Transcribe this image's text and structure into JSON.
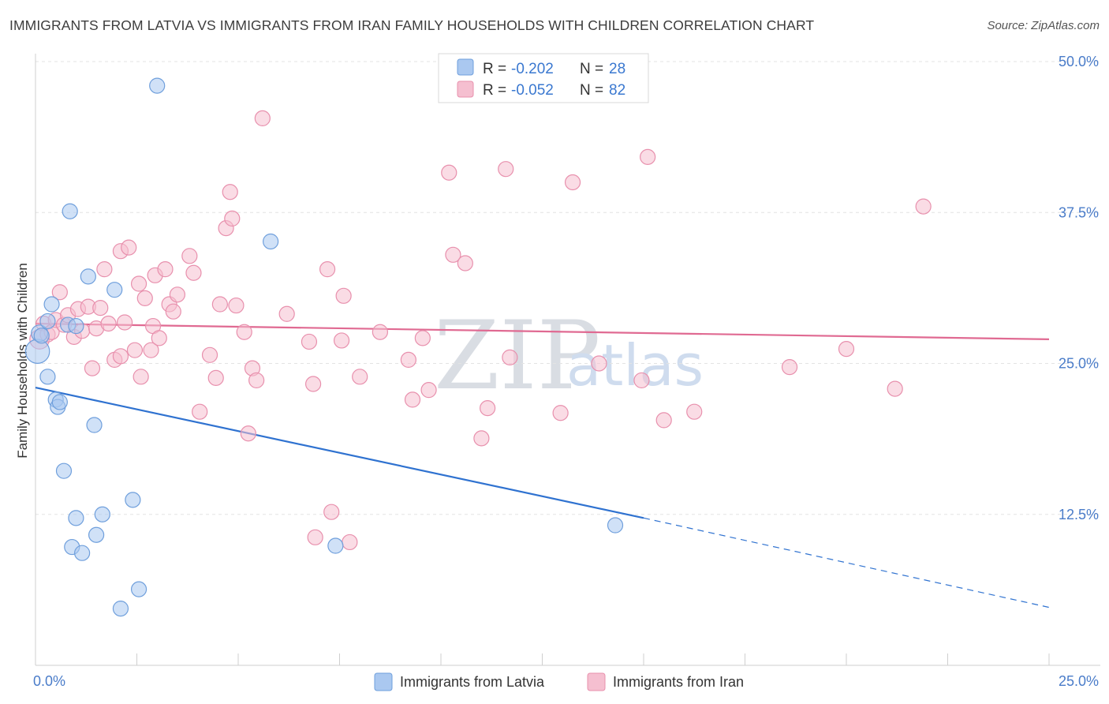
{
  "title": "IMMIGRANTS FROM LATVIA VS IMMIGRANTS FROM IRAN FAMILY HOUSEHOLDS WITH CHILDREN CORRELATION CHART",
  "source": "Source: ZipAtlas.com",
  "watermark": {
    "part1": "ZIP",
    "part2": "atlas"
  },
  "colors": {
    "latvia_fill": "#aac8f0",
    "latvia_stroke": "#6f9fdc",
    "latvia_line": "#2f72d0",
    "iran_fill": "#f5bfd0",
    "iran_stroke": "#e890ad",
    "iran_line": "#e06a92",
    "tick_text": "#4a7cc9",
    "grid": "#e3e3e3"
  },
  "legend": {
    "rows": [
      {
        "r_label": "R = ",
        "r_value": "-0.202",
        "n_label": "N = ",
        "n_value": "28"
      },
      {
        "r_label": "R = ",
        "r_value": "-0.052",
        "n_label": "N = ",
        "n_value": "82"
      }
    ]
  },
  "chart_data": {
    "type": "scatter",
    "title": "IMMIGRANTS FROM LATVIA VS IMMIGRANTS FROM IRAN FAMILY HOUSEHOLDS WITH CHILDREN CORRELATION CHART",
    "xlabel": "",
    "ylabel": "Family Households with Children",
    "xlim": [
      0,
      25
    ],
    "ylim": [
      0,
      50
    ],
    "x_tick_labels": [
      "0.0%",
      "25.0%"
    ],
    "y_ticks": [
      12.5,
      25.0,
      37.5,
      50.0
    ],
    "y_tick_labels": [
      "12.5%",
      "25.0%",
      "37.5%",
      "50.0%"
    ],
    "grid": true,
    "legend_position": "top-center",
    "series": [
      {
        "name": "Immigrants from Latvia",
        "points": [
          [
            0.05,
            26.0,
            1.6
          ],
          [
            0.1,
            27.5,
            1.1
          ],
          [
            0.3,
            28.5,
            1
          ],
          [
            0.15,
            27.3,
            1
          ],
          [
            0.3,
            23.9,
            1
          ],
          [
            0.4,
            29.9,
            1
          ],
          [
            0.5,
            22.0,
            1
          ],
          [
            0.55,
            21.4,
            1
          ],
          [
            0.6,
            21.8,
            1
          ],
          [
            0.7,
            16.1,
            1
          ],
          [
            0.8,
            28.2,
            1
          ],
          [
            0.85,
            37.6,
            1
          ],
          [
            1.0,
            12.2,
            1
          ],
          [
            0.9,
            9.8,
            1
          ],
          [
            1.15,
            9.3,
            1
          ],
          [
            1.0,
            28.1,
            1
          ],
          [
            1.3,
            32.2,
            1
          ],
          [
            1.45,
            19.9,
            1
          ],
          [
            1.5,
            10.8,
            1
          ],
          [
            1.65,
            12.5,
            1
          ],
          [
            1.95,
            31.1,
            1
          ],
          [
            2.1,
            4.7,
            1
          ],
          [
            2.4,
            13.7,
            1
          ],
          [
            2.55,
            6.3,
            1
          ],
          [
            3.0,
            48.0,
            1
          ],
          [
            5.8,
            35.1,
            1
          ],
          [
            7.4,
            9.9,
            1
          ],
          [
            14.3,
            11.6,
            1
          ]
        ],
        "trend": {
          "x0": 0,
          "y0": 23.0,
          "x1": 15.0,
          "y1": 12.2,
          "dashed_to_x": 25.0,
          "dashed_to_y": 4.8
        }
      },
      {
        "name": "Immigrants from Iran",
        "points": [
          [
            0.1,
            27.0,
            1.3
          ],
          [
            0.2,
            28.3,
            1
          ],
          [
            0.3,
            27.4,
            1
          ],
          [
            0.4,
            27.6,
            1
          ],
          [
            0.5,
            28.6,
            1
          ],
          [
            0.6,
            30.9,
            1
          ],
          [
            0.7,
            28.2,
            1
          ],
          [
            0.8,
            29.0,
            1
          ],
          [
            0.95,
            27.2,
            1
          ],
          [
            1.05,
            29.5,
            1
          ],
          [
            1.15,
            27.7,
            1
          ],
          [
            1.3,
            29.7,
            1
          ],
          [
            1.4,
            24.6,
            1
          ],
          [
            1.5,
            27.9,
            1
          ],
          [
            1.6,
            29.6,
            1
          ],
          [
            1.7,
            32.8,
            1
          ],
          [
            1.8,
            28.3,
            1
          ],
          [
            1.95,
            25.3,
            1
          ],
          [
            2.1,
            25.6,
            1
          ],
          [
            2.1,
            34.3,
            1
          ],
          [
            2.2,
            28.4,
            1
          ],
          [
            2.3,
            34.6,
            1
          ],
          [
            2.45,
            26.1,
            1
          ],
          [
            2.55,
            31.6,
            1
          ],
          [
            2.6,
            23.9,
            1
          ],
          [
            2.7,
            30.4,
            1
          ],
          [
            2.85,
            26.1,
            1
          ],
          [
            2.9,
            28.1,
            1
          ],
          [
            2.95,
            32.3,
            1
          ],
          [
            3.05,
            27.1,
            1
          ],
          [
            3.2,
            32.8,
            1
          ],
          [
            3.3,
            29.9,
            1
          ],
          [
            3.4,
            29.3,
            1
          ],
          [
            3.5,
            30.7,
            1
          ],
          [
            3.8,
            33.9,
            1
          ],
          [
            3.9,
            32.5,
            1
          ],
          [
            4.05,
            21.0,
            1
          ],
          [
            4.3,
            25.7,
            1
          ],
          [
            4.45,
            23.8,
            1
          ],
          [
            4.55,
            29.9,
            1
          ],
          [
            4.7,
            36.2,
            1
          ],
          [
            4.8,
            39.2,
            1
          ],
          [
            4.85,
            37.0,
            1
          ],
          [
            4.95,
            29.8,
            1
          ],
          [
            5.15,
            27.6,
            1
          ],
          [
            5.25,
            19.2,
            1
          ],
          [
            5.35,
            24.6,
            1
          ],
          [
            5.45,
            23.6,
            1
          ],
          [
            5.6,
            45.3,
            1
          ],
          [
            6.2,
            29.1,
            1
          ],
          [
            6.75,
            26.8,
            1
          ],
          [
            6.85,
            23.3,
            1
          ],
          [
            7.2,
            32.8,
            1
          ],
          [
            7.3,
            12.7,
            1
          ],
          [
            7.55,
            26.9,
            1
          ],
          [
            7.6,
            30.6,
            1
          ],
          [
            7.75,
            10.2,
            1
          ],
          [
            8.0,
            23.9,
            1
          ],
          [
            8.5,
            27.6,
            1
          ],
          [
            9.2,
            25.3,
            1
          ],
          [
            9.3,
            22.0,
            1
          ],
          [
            9.55,
            27.1,
            1
          ],
          [
            9.7,
            22.8,
            1
          ],
          [
            10.2,
            40.8,
            1
          ],
          [
            10.3,
            34.0,
            1
          ],
          [
            10.6,
            33.3,
            1
          ],
          [
            11.0,
            18.8,
            1
          ],
          [
            11.15,
            21.3,
            1
          ],
          [
            11.6,
            41.1,
            1
          ],
          [
            11.7,
            25.5,
            1
          ],
          [
            12.95,
            20.9,
            1
          ],
          [
            13.25,
            40.0,
            1
          ],
          [
            13.9,
            25.0,
            1
          ],
          [
            14.95,
            23.6,
            1
          ],
          [
            15.1,
            42.1,
            1
          ],
          [
            15.5,
            20.3,
            1
          ],
          [
            16.25,
            21.0,
            1
          ],
          [
            18.6,
            24.7,
            1
          ],
          [
            20.0,
            26.2,
            1
          ],
          [
            21.2,
            22.9,
            1
          ],
          [
            21.9,
            38.0,
            1
          ],
          [
            6.9,
            10.6,
            1
          ]
        ],
        "trend": {
          "x0": 0,
          "y0": 28.3,
          "x1": 25.0,
          "y1": 27.0
        }
      }
    ]
  }
}
